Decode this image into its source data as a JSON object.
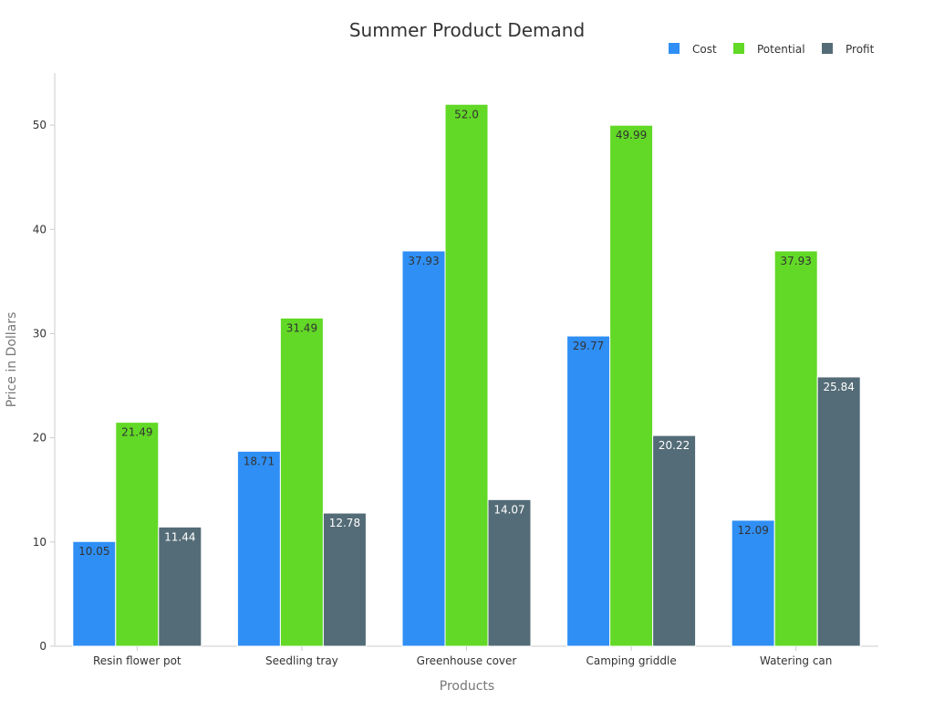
{
  "chart_data": {
    "type": "bar",
    "title": "Summer Product Demand",
    "xlabel": "Products",
    "ylabel": "Price in Dollars",
    "categories": [
      "Resin flower pot",
      "Seedling tray",
      "Greenhouse cover",
      "Camping griddle",
      "Watering can"
    ],
    "series": [
      {
        "name": "Cost",
        "color": "#2f8ff5",
        "label_color": "#333333",
        "values": [
          10.05,
          18.71,
          37.93,
          29.77,
          12.09
        ]
      },
      {
        "name": "Potential",
        "color": "#62d926",
        "label_color": "#333333",
        "values": [
          21.49,
          31.49,
          52.0,
          49.99,
          37.93
        ]
      },
      {
        "name": "Profit",
        "color": "#546c77",
        "label_color": "#ffffff",
        "values": [
          11.44,
          12.78,
          14.07,
          20.22,
          25.84
        ]
      }
    ],
    "value_labels": [
      [
        "10.05",
        "18.71",
        "37.93",
        "29.77",
        "12.09"
      ],
      [
        "21.49",
        "31.49",
        "52.0",
        "49.99",
        "37.93"
      ],
      [
        "11.44",
        "12.78",
        "14.07",
        "20.22",
        "25.84"
      ]
    ],
    "yticks": [
      0,
      10,
      20,
      30,
      40,
      50
    ],
    "ylim": [
      0,
      55
    ],
    "grid": false,
    "legend_position": "top-right"
  }
}
